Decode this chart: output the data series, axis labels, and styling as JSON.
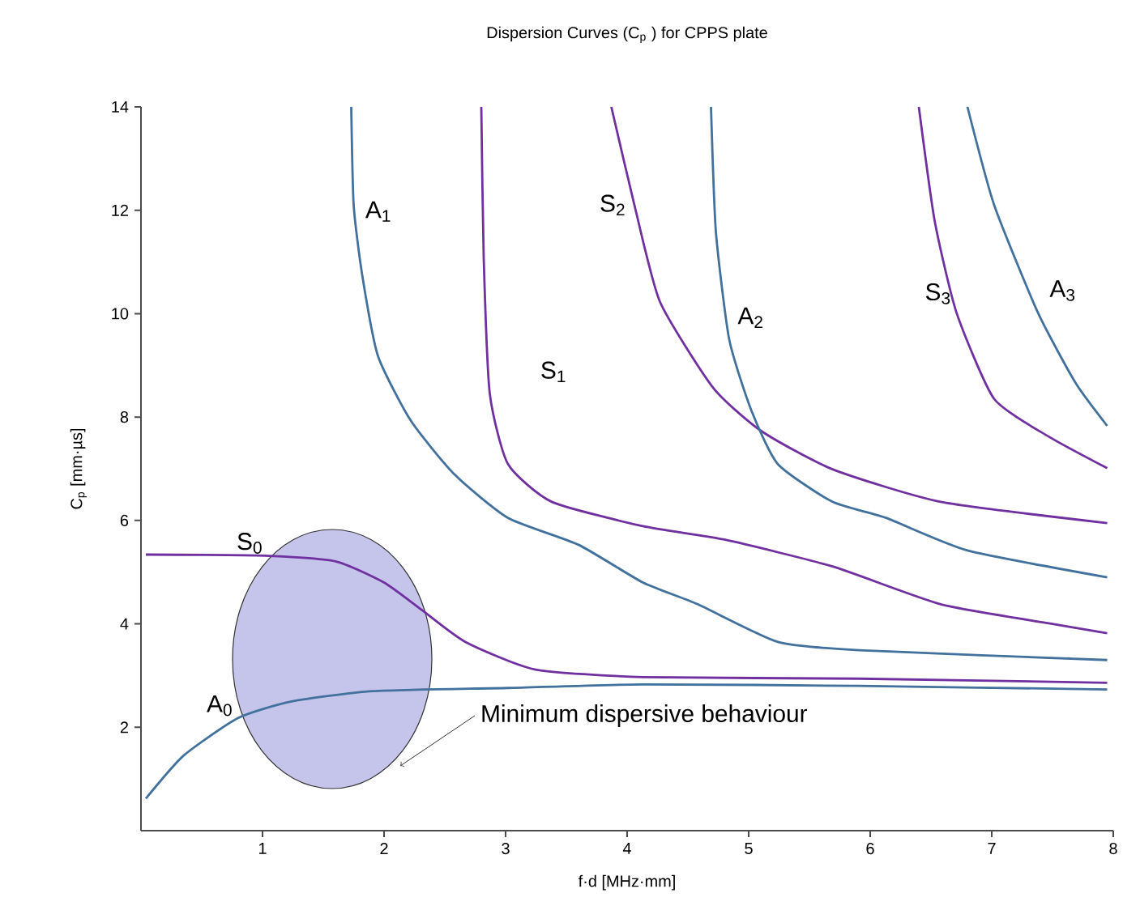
{
  "chart_data": {
    "type": "line",
    "title": "Dispersion Curves (C$_{p}$ )  for CPPS plate",
    "xlabel": "f·d [MHz·mm]",
    "ylabel": "C$_{p}$  [mm·µs]",
    "xlim": [
      0,
      8
    ],
    "ylim": [
      0,
      14
    ],
    "xticks": [
      1,
      2,
      3,
      4,
      5,
      6,
      7,
      8
    ],
    "yticks": [
      2,
      4,
      6,
      8,
      10,
      12,
      14
    ],
    "series": [
      {
        "name": "A$_{0}$",
        "color": "#41719c",
        "x": [
          0.04,
          0.35,
          0.8,
          1.24,
          1.91,
          3.02,
          4.13,
          5.9,
          7.95
        ],
        "values": [
          0.62,
          1.45,
          2.18,
          2.5,
          2.7,
          2.76,
          2.83,
          2.8,
          2.73
        ]
      },
      {
        "name": "S$_{0}$",
        "color": "#7030a0",
        "x": [
          0.04,
          1.02,
          1.6,
          2.0,
          2.31,
          2.67,
          3.24,
          4.13,
          5.91,
          7.95
        ],
        "values": [
          5.34,
          5.32,
          5.21,
          4.8,
          4.27,
          3.65,
          3.12,
          2.97,
          2.94,
          2.86
        ]
      },
      {
        "name": "A$_{1}$",
        "color": "#41719c",
        "x": [
          1.73,
          1.75,
          1.82,
          1.95,
          2.22,
          2.58,
          3.02,
          3.6,
          4.13,
          4.58,
          5.24,
          5.91,
          7.95
        ],
        "values": [
          14,
          12.1,
          10.75,
          9.18,
          7.93,
          6.89,
          6.05,
          5.53,
          4.8,
          4.38,
          3.65,
          3.49,
          3.3
        ]
      },
      {
        "name": "S$_{1}$",
        "color": "#7030a0",
        "x": [
          2.8,
          2.82,
          2.87,
          3.02,
          3.38,
          4.13,
          4.8,
          5.69,
          6.58,
          7.47,
          7.95
        ],
        "values": [
          14,
          11.07,
          8.45,
          7.09,
          6.36,
          5.89,
          5.63,
          5.11,
          4.38,
          4.01,
          3.82
        ]
      },
      {
        "name": "S$_{2}$",
        "color": "#7030a0",
        "x": [
          3.87,
          4.06,
          4.27,
          4.71,
          5.11,
          5.69,
          6.58,
          7.95
        ],
        "values": [
          14,
          12.1,
          10.23,
          8.56,
          7.72,
          6.99,
          6.36,
          5.95
        ]
      },
      {
        "name": "A$_{2}$",
        "color": "#41719c",
        "x": [
          4.69,
          4.73,
          4.84,
          5.02,
          5.24,
          5.69,
          6.13,
          6.8,
          7.95
        ],
        "values": [
          14,
          11.59,
          9.5,
          8.14,
          7.09,
          6.36,
          6.05,
          5.42,
          4.9
        ]
      },
      {
        "name": "S$_{3}$",
        "color": "#7030a0",
        "x": [
          6.4,
          6.53,
          6.71,
          7.02,
          7.47,
          7.95
        ],
        "values": [
          14,
          11.8,
          10.02,
          8.35,
          7.62,
          7.01
        ]
      },
      {
        "name": "A$_{3}$",
        "color": "#41719c",
        "x": [
          6.8,
          7.02,
          7.38,
          7.69,
          7.95
        ],
        "values": [
          14,
          12.1,
          10.02,
          8.66,
          7.83
        ]
      }
    ],
    "annotations": [
      "Minimum dispersive behaviour"
    ]
  }
}
